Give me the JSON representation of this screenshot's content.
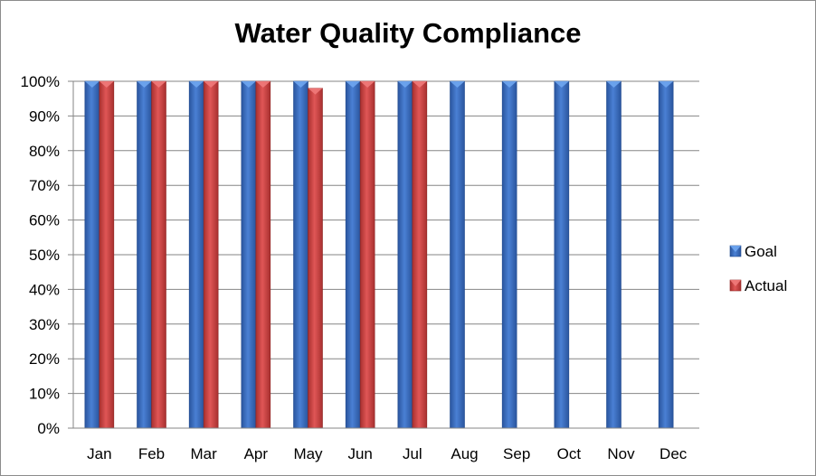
{
  "chart_data": {
    "type": "bar",
    "title": "Water Quality Compliance",
    "xlabel": "",
    "ylabel": "",
    "categories": [
      "Jan",
      "Feb",
      "Mar",
      "Apr",
      "May",
      "Jun",
      "Jul",
      "Aug",
      "Sep",
      "Oct",
      "Nov",
      "Dec"
    ],
    "series": [
      {
        "name": "Goal",
        "values": [
          100,
          100,
          100,
          100,
          100,
          100,
          100,
          100,
          100,
          100,
          100,
          100
        ],
        "color": "#3a6bbf"
      },
      {
        "name": "Actual",
        "values": [
          100,
          100,
          100,
          100,
          98,
          100,
          100,
          null,
          null,
          null,
          null,
          null
        ],
        "color": "#c8403f"
      }
    ],
    "ylim": [
      0,
      100
    ],
    "yticks": [
      0,
      10,
      20,
      30,
      40,
      50,
      60,
      70,
      80,
      90,
      100
    ],
    "ytick_labels": [
      "0%",
      "10%",
      "20%",
      "30%",
      "40%",
      "50%",
      "60%",
      "70%",
      "80%",
      "90%",
      "100%"
    ],
    "grid": true,
    "legend_position": "right"
  }
}
